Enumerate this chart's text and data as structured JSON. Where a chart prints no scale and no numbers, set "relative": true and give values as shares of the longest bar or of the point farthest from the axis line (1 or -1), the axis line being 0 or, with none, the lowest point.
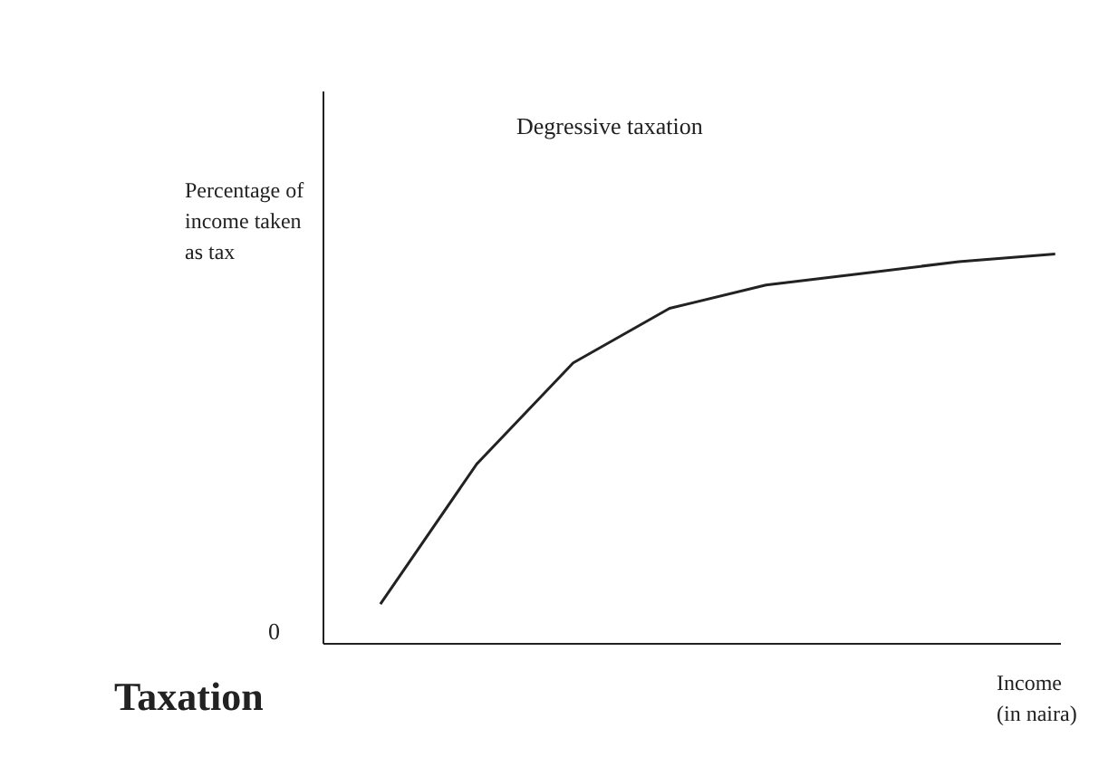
{
  "chart_data": {
    "type": "line",
    "title": "Degressive taxation",
    "xlabel": "Income (in naira)",
    "ylabel": "Percentage of income taken as tax",
    "relative": true,
    "categories": [
      null,
      null,
      null,
      null,
      null,
      null,
      null,
      null
    ],
    "series": [
      {
        "color": "#222222",
        "values": [
          0.1,
          0.46,
          0.72,
          0.86,
          0.92,
          0.95,
          0.98,
          1.0
        ]
      }
    ],
    "annotations": [
      "0",
      "Taxation"
    ]
  }
}
